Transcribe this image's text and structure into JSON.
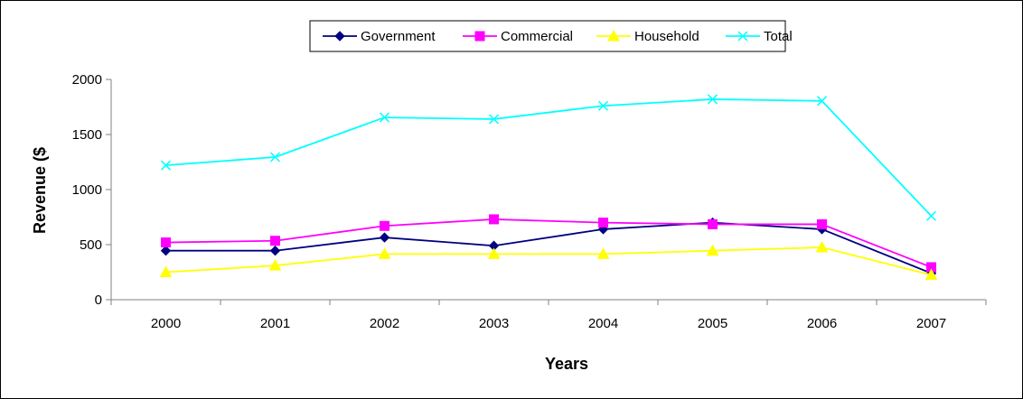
{
  "chart_data": {
    "type": "line",
    "categories": [
      "2000",
      "2001",
      "2002",
      "2003",
      "2004",
      "2005",
      "2006",
      "2007"
    ],
    "series": [
      {
        "name": "Government",
        "color": "#000080",
        "marker": "diamond",
        "values": [
          445,
          445,
          565,
          490,
          640,
          700,
          640,
          240
        ]
      },
      {
        "name": "Commercial",
        "color": "#FF00FF",
        "marker": "square",
        "values": [
          520,
          535,
          670,
          730,
          700,
          685,
          685,
          295
        ]
      },
      {
        "name": "Household",
        "color": "#FFFF00",
        "marker": "triangle",
        "values": [
          250,
          310,
          415,
          415,
          415,
          445,
          475,
          225
        ]
      },
      {
        "name": "Total",
        "color": "#00FFFF",
        "marker": "x",
        "values": [
          1220,
          1295,
          1655,
          1640,
          1760,
          1820,
          1805,
          760
        ]
      }
    ],
    "xlabel": "Years",
    "ylabel": "Revenue ($",
    "ylim": [
      0,
      2000
    ],
    "yticks": [
      "0",
      "500",
      "1000",
      "1500",
      "2000"
    ],
    "grid": false,
    "legend": "top-center"
  }
}
